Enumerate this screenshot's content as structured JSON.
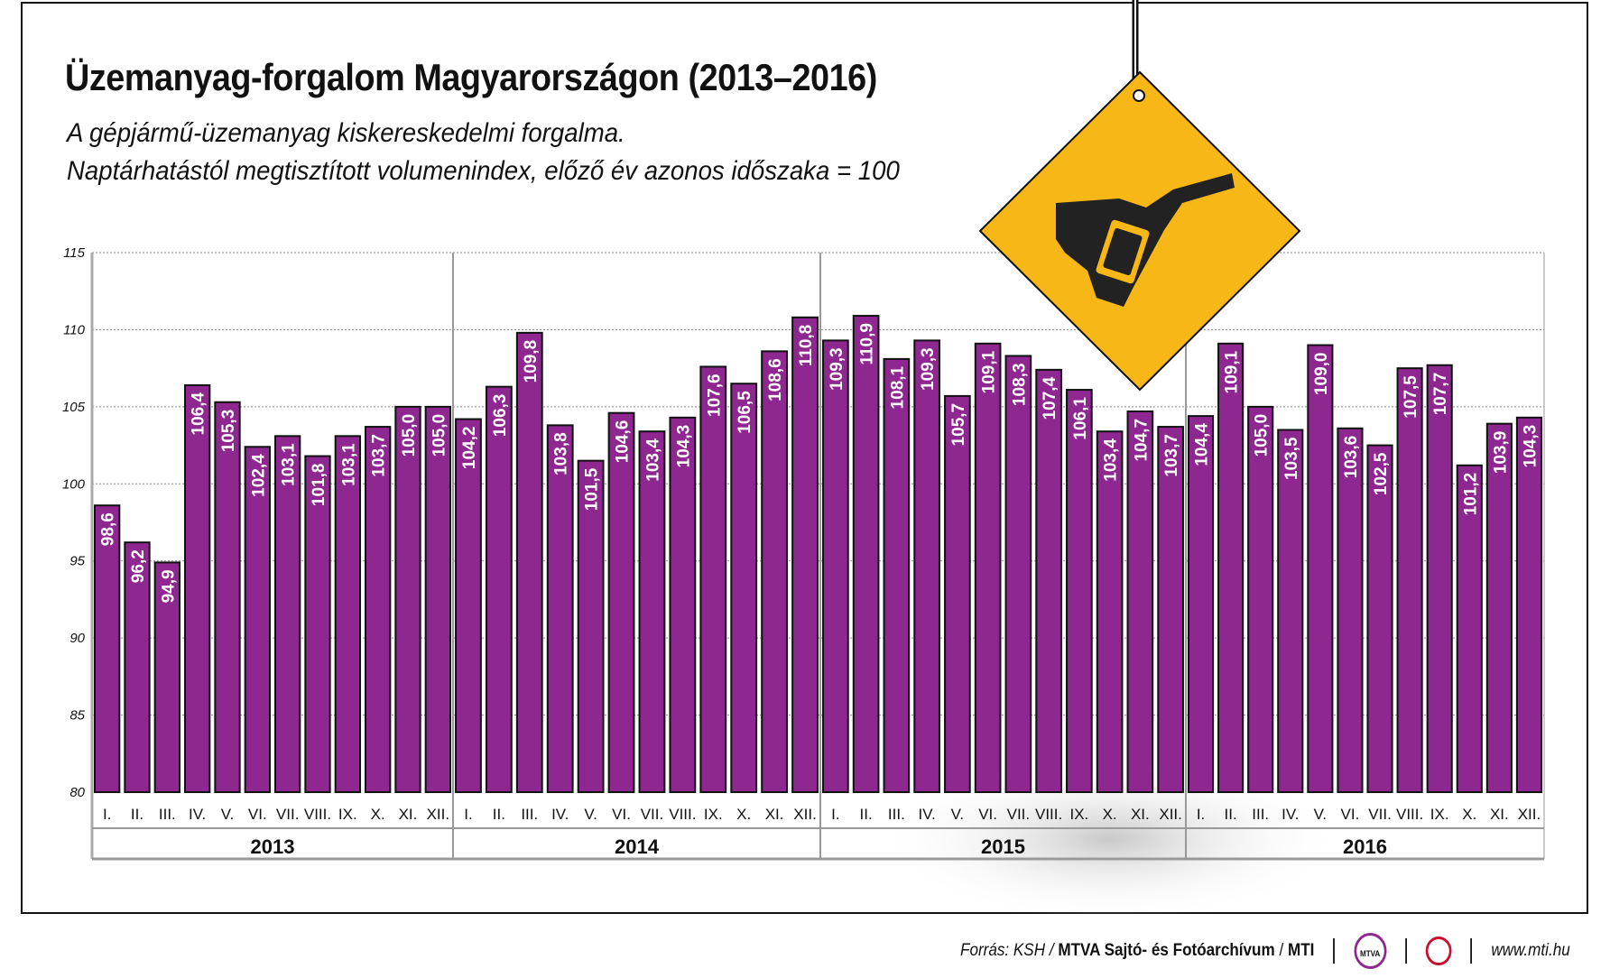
{
  "title": "Üzemanyag-forgalom Magyarországon (2013–2016)",
  "subtitle_lines": [
    "A gépjármű-üzemanyag kiskereskedelmi forgalma.",
    "Naptárhatástól megtisztított volumenindex, előző év azonos időszaka = 100"
  ],
  "chart_data": {
    "type": "bar",
    "title": "Üzemanyag-forgalom Magyarországon (2013–2016)",
    "ylim": [
      80,
      115
    ],
    "yticks": [
      80,
      85,
      90,
      95,
      100,
      105,
      110,
      115
    ],
    "grid": true,
    "bar_color": "#8e278f",
    "months": [
      "I.",
      "II.",
      "III.",
      "IV.",
      "V.",
      "VI.",
      "VII.",
      "VIII.",
      "IX.",
      "X.",
      "XI.",
      "XII."
    ],
    "years": [
      {
        "year": "2013",
        "values": [
          98.6,
          96.2,
          94.9,
          106.4,
          105.3,
          102.4,
          103.1,
          101.8,
          103.1,
          103.7,
          105.0,
          105.0
        ]
      },
      {
        "year": "2014",
        "values": [
          104.2,
          106.3,
          109.8,
          103.8,
          101.5,
          104.6,
          103.4,
          104.3,
          107.6,
          106.5,
          108.6,
          110.8
        ]
      },
      {
        "year": "2015",
        "values": [
          109.3,
          110.9,
          108.1,
          109.3,
          105.7,
          109.1,
          108.3,
          107.4,
          106.1,
          103.4,
          104.7,
          103.7
        ]
      },
      {
        "year": "2016",
        "values": [
          104.4,
          109.1,
          105.0,
          103.5,
          109.0,
          103.6,
          102.5,
          107.5,
          107.7,
          101.2,
          103.9,
          104.3
        ]
      }
    ]
  },
  "sign": {
    "icon": "fuel-pump-nozzle-icon",
    "color": "#f7b817"
  },
  "footer": {
    "source_prefix": "Forrás: KSH / ",
    "source_org": "MTVA Sajtó- és Fotóarchívum",
    "source_sep": " / ",
    "source_mti": "MTI",
    "logo_mtva": "MTVA",
    "url": "www.mti.hu"
  }
}
